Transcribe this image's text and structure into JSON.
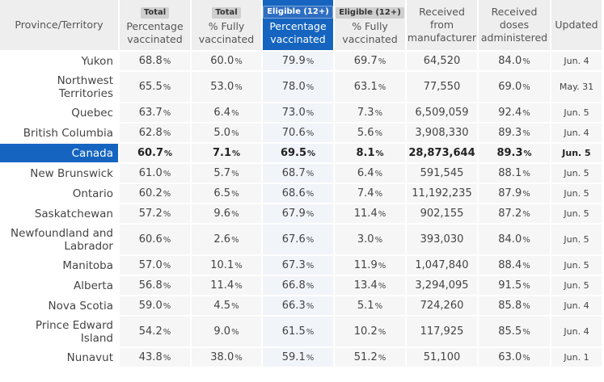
{
  "headers": {
    "province": "Province/Territory",
    "total_pct": {
      "badge": "Total",
      "label": "Percentage vaccinated"
    },
    "total_full": {
      "badge": "Total",
      "label": "% Fully vaccinated"
    },
    "elig_pct": {
      "badge": "Eligible (12+)",
      "label": "Percentage vaccinated"
    },
    "elig_full": {
      "badge": "Eligible (12+)",
      "label": "% Fully vaccinated"
    },
    "received": "Received from manufacturer",
    "administered": "Received doses administered",
    "updated": "Updated"
  },
  "colors": {
    "highlight": "#1565c0",
    "header_bg": "#eeeeee"
  },
  "rows": [
    {
      "name": "Yukon",
      "total_pct": "68.8",
      "total_full": "60.0",
      "elig_pct": "79.9",
      "elig_full": "69.7",
      "received": "64,520",
      "administered": "84.0",
      "updated": "Jun. 4",
      "double": false
    },
    {
      "name": "Northwest Territories",
      "total_pct": "65.5",
      "total_full": "53.0",
      "elig_pct": "78.0",
      "elig_full": "63.1",
      "received": "77,550",
      "administered": "69.0",
      "updated": "May. 31",
      "double": true
    },
    {
      "name": "Quebec",
      "total_pct": "63.7",
      "total_full": "6.4",
      "elig_pct": "73.0",
      "elig_full": "7.3",
      "received": "6,509,059",
      "administered": "92.4",
      "updated": "Jun. 5",
      "double": false
    },
    {
      "name": "British Columbia",
      "total_pct": "62.8",
      "total_full": "5.0",
      "elig_pct": "70.6",
      "elig_full": "5.6",
      "received": "3,908,330",
      "administered": "89.3",
      "updated": "Jun. 4",
      "double": false
    },
    {
      "name": "Canada",
      "total_pct": "60.7",
      "total_full": "7.1",
      "elig_pct": "69.5",
      "elig_full": "8.1",
      "received": "28,873,644",
      "administered": "89.3",
      "updated": "Jun. 5",
      "double": false,
      "canada": true
    },
    {
      "name": "New Brunswick",
      "total_pct": "61.0",
      "total_full": "5.7",
      "elig_pct": "68.7",
      "elig_full": "6.4",
      "received": "591,545",
      "administered": "88.1",
      "updated": "Jun. 5",
      "double": false
    },
    {
      "name": "Ontario",
      "total_pct": "60.2",
      "total_full": "6.5",
      "elig_pct": "68.6",
      "elig_full": "7.4",
      "received": "11,192,235",
      "administered": "87.9",
      "updated": "Jun. 5",
      "double": false
    },
    {
      "name": "Saskatchewan",
      "total_pct": "57.2",
      "total_full": "9.6",
      "elig_pct": "67.9",
      "elig_full": "11.4",
      "received": "902,155",
      "administered": "87.2",
      "updated": "Jun. 5",
      "double": false
    },
    {
      "name": "Newfoundland and Labrador",
      "total_pct": "60.6",
      "total_full": "2.6",
      "elig_pct": "67.6",
      "elig_full": "3.0",
      "received": "393,030",
      "administered": "84.0",
      "updated": "Jun. 5",
      "double": true
    },
    {
      "name": "Manitoba",
      "total_pct": "57.0",
      "total_full": "10.1",
      "elig_pct": "67.3",
      "elig_full": "11.9",
      "received": "1,047,840",
      "administered": "88.4",
      "updated": "Jun. 5",
      "double": false
    },
    {
      "name": "Alberta",
      "total_pct": "56.8",
      "total_full": "11.4",
      "elig_pct": "66.8",
      "elig_full": "13.4",
      "received": "3,294,095",
      "administered": "91.5",
      "updated": "Jun. 5",
      "double": false
    },
    {
      "name": "Nova Scotia",
      "total_pct": "59.0",
      "total_full": "4.5",
      "elig_pct": "66.3",
      "elig_full": "5.1",
      "received": "724,260",
      "administered": "85.8",
      "updated": "Jun. 4",
      "double": false
    },
    {
      "name": "Prince Edward Island",
      "total_pct": "54.2",
      "total_full": "9.0",
      "elig_pct": "61.5",
      "elig_full": "10.2",
      "received": "117,925",
      "administered": "85.5",
      "updated": "Jun. 4",
      "double": true
    },
    {
      "name": "Nunavut",
      "total_pct": "43.8",
      "total_full": "38.0",
      "elig_pct": "59.1",
      "elig_full": "51.2",
      "received": "51,100",
      "administered": "63.0",
      "updated": "Jun. 1",
      "double": false
    }
  ],
  "unit": "%"
}
